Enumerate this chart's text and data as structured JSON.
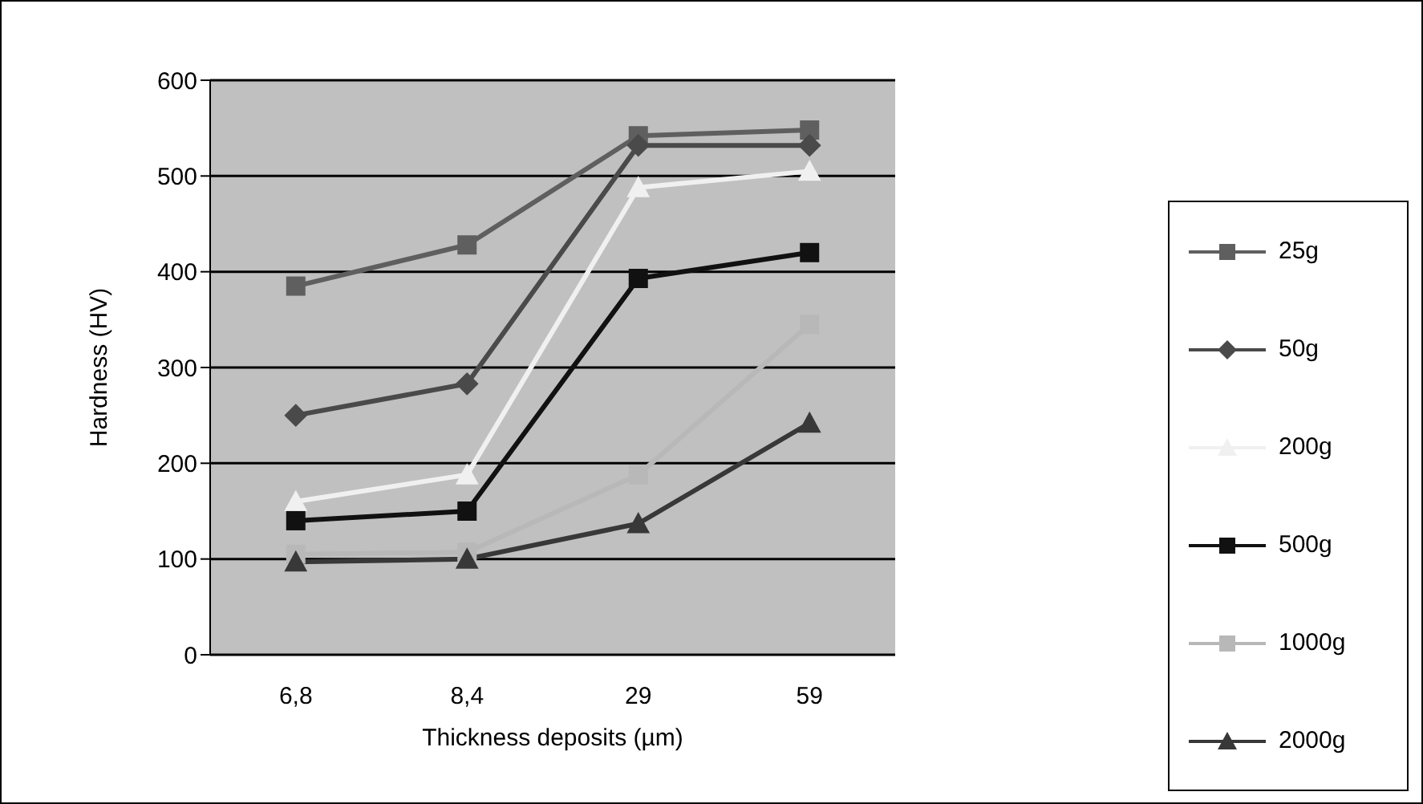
{
  "chart_data": {
    "type": "line",
    "xlabel": "Thickness deposits (µm)",
    "ylabel": "Hardness (HV)",
    "categories": [
      "6,8",
      "8,4",
      "29",
      "59"
    ],
    "ylim": [
      0,
      600
    ],
    "yticks": [
      0,
      100,
      200,
      300,
      400,
      500,
      600
    ],
    "grid": "y",
    "legend": "right",
    "series": [
      {
        "name": "25g",
        "color": "#5f5f5f",
        "marker": "square",
        "values": [
          385,
          428,
          542,
          548
        ]
      },
      {
        "name": "50g",
        "color": "#4a4a4a",
        "marker": "diamond",
        "values": [
          250,
          283,
          532,
          532
        ]
      },
      {
        "name": "200g",
        "color": "#f0f0f0",
        "marker": "triangle",
        "values": [
          160,
          188,
          488,
          505
        ]
      },
      {
        "name": "500g",
        "color": "#111111",
        "marker": "square",
        "values": [
          140,
          150,
          393,
          420
        ]
      },
      {
        "name": "1000g",
        "color": "#b8b8b8",
        "marker": "square",
        "values": [
          105,
          107,
          188,
          345
        ]
      },
      {
        "name": "2000g",
        "color": "#383838",
        "marker": "triangle",
        "values": [
          97,
          100,
          137,
          242
        ]
      }
    ]
  }
}
